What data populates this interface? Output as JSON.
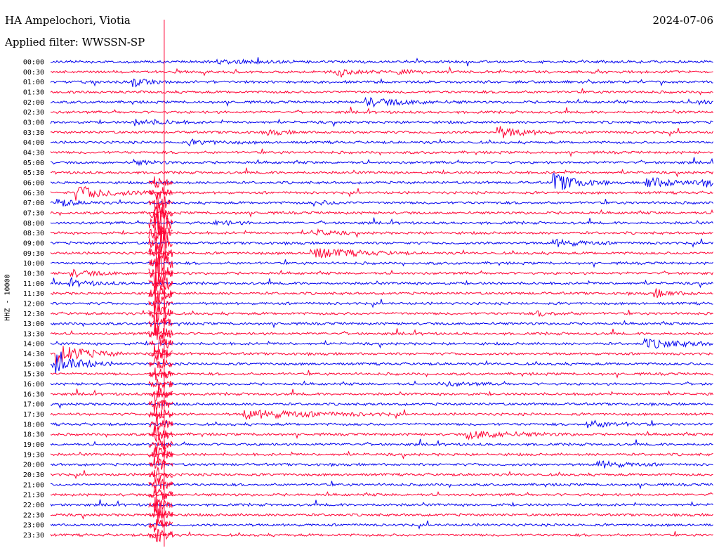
{
  "header": {
    "station": "HA Ampelochori, Viotia",
    "filter": "Applied filter: WWSSN-SP",
    "date": "2024-07-06"
  },
  "axis": {
    "channel_label": "HHZ - 10000"
  },
  "colors": {
    "trace_a": "#0000ee",
    "trace_b": "#ff0033",
    "text": "#000000"
  },
  "chart_data": {
    "type": "helicorder",
    "title": "HA Ampelochori, Viotia",
    "subtitle": "Applied filter: WWSSN-SP",
    "date": "2024-07-06",
    "ylabel": "HHZ - 10000",
    "row_labels": [
      "00:00",
      "00:30",
      "01:00",
      "01:30",
      "02:00",
      "02:30",
      "03:00",
      "03:30",
      "04:00",
      "04:30",
      "05:00",
      "05:30",
      "06:00",
      "06:30",
      "07:00",
      "07:30",
      "08:00",
      "08:30",
      "09:00",
      "09:30",
      "10:00",
      "10:30",
      "11:00",
      "11:30",
      "12:00",
      "12:30",
      "13:00",
      "13:30",
      "14:00",
      "14:30",
      "15:00",
      "15:30",
      "16:00",
      "16:30",
      "17:00",
      "17:30",
      "18:00",
      "18:30",
      "19:00",
      "19:30",
      "20:00",
      "20:30",
      "21:00",
      "21:30",
      "22:00",
      "22:30",
      "23:00",
      "23:30"
    ],
    "row_colors": [
      "trace_a",
      "trace_b"
    ],
    "minutes_per_row": 30,
    "events": [
      {
        "row": 0,
        "minute": 7.6,
        "level": 0.35,
        "duration_min": 2.5
      },
      {
        "row": 1,
        "minute": 13.0,
        "level": 0.6,
        "duration_min": 1.0
      },
      {
        "row": 1,
        "minute": 15.8,
        "level": 0.45,
        "duration_min": 0.8
      },
      {
        "row": 2,
        "minute": 3.8,
        "level": 1.0,
        "duration_min": 0.6
      },
      {
        "row": 4,
        "minute": 14.3,
        "level": 0.9,
        "duration_min": 1.8
      },
      {
        "row": 4,
        "minute": 29.0,
        "level": 0.5,
        "duration_min": 1.0
      },
      {
        "row": 6,
        "minute": 3.9,
        "level": 0.7,
        "duration_min": 1.2
      },
      {
        "row": 7,
        "minute": 20.3,
        "level": 1.4,
        "duration_min": 1.0
      },
      {
        "row": 7,
        "minute": 9.9,
        "level": 0.5,
        "duration_min": 0.8
      },
      {
        "row": 8,
        "minute": 6.3,
        "level": 0.5,
        "duration_min": 1.2
      },
      {
        "row": 10,
        "minute": 3.8,
        "level": 0.5,
        "duration_min": 0.8
      },
      {
        "row": 12,
        "minute": 22.8,
        "level": 2.2,
        "duration_min": 1.0
      },
      {
        "row": 12,
        "minute": 27.0,
        "level": 1.4,
        "duration_min": 1.2
      },
      {
        "row": 12,
        "minute": 29.6,
        "level": 0.8,
        "duration_min": 1.0
      },
      {
        "row": 13,
        "minute": 1.2,
        "level": 1.6,
        "duration_min": 1.4
      },
      {
        "row": 14,
        "minute": 0.3,
        "level": 0.9,
        "duration_min": 0.8
      },
      {
        "row": 14,
        "minute": 12.0,
        "level": 0.5,
        "duration_min": 0.8
      },
      {
        "row": 16,
        "minute": 7.5,
        "level": 0.6,
        "duration_min": 0.8
      },
      {
        "row": 17,
        "minute": 11.9,
        "level": 0.7,
        "duration_min": 0.8
      },
      {
        "row": 18,
        "minute": 22.8,
        "level": 0.8,
        "duration_min": 1.2
      },
      {
        "row": 19,
        "minute": 11.8,
        "level": 1.3,
        "duration_min": 1.8
      },
      {
        "row": 21,
        "minute": 1.0,
        "level": 0.7,
        "duration_min": 1.2
      },
      {
        "row": 22,
        "minute": 0.9,
        "level": 0.6,
        "duration_min": 1.2
      },
      {
        "row": 23,
        "minute": 27.4,
        "level": 0.9,
        "duration_min": 0.8
      },
      {
        "row": 25,
        "minute": 22.1,
        "level": 0.5,
        "duration_min": 0.8
      },
      {
        "row": 28,
        "minute": 26.9,
        "level": 1.0,
        "duration_min": 1.8
      },
      {
        "row": 29,
        "minute": 0.3,
        "level": 2.3,
        "duration_min": 1.2
      },
      {
        "row": 30,
        "minute": 0.3,
        "level": 2.3,
        "duration_min": 1.0
      },
      {
        "row": 32,
        "minute": 17.6,
        "level": 0.5,
        "duration_min": 1.2
      },
      {
        "row": 35,
        "minute": 8.8,
        "level": 1.0,
        "duration_min": 3.0
      },
      {
        "row": 36,
        "minute": 24.3,
        "level": 0.8,
        "duration_min": 1.2
      },
      {
        "row": 37,
        "minute": 18.9,
        "level": 0.9,
        "duration_min": 2.0
      },
      {
        "row": 40,
        "minute": 24.8,
        "level": 0.8,
        "duration_min": 1.2
      }
    ],
    "large_event": {
      "start_row": 12,
      "end_row": 47,
      "minute": 4.7,
      "note": "teleseismic surface waves crossing many rows"
    }
  }
}
